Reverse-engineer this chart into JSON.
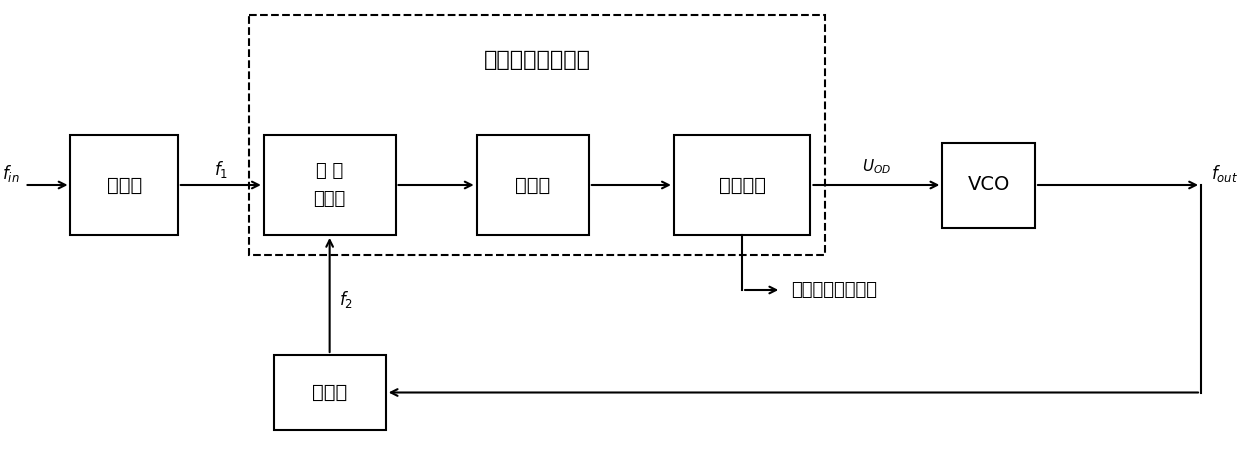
{
  "fig_width": 12.4,
  "fig_height": 4.51,
  "bg_color": "#ffffff",
  "dashed_title": "异频鉴相处理电路",
  "block_divider1": "分频器",
  "block_phase_det_line1": "异 频",
  "block_phase_det_line2": "鉴相器",
  "block_charge": "电荷泵",
  "block_signal": "信号处理",
  "block_vco": "VCO",
  "block_divider2": "分频器",
  "label_fin": "$f_{in}$",
  "label_f1": "$f_1$",
  "label_f2": "$f_2$",
  "label_uod": "$U_{OD}$",
  "label_fout": "$f_{out}$",
  "label_phase_noise": "相位噪声信息提取"
}
